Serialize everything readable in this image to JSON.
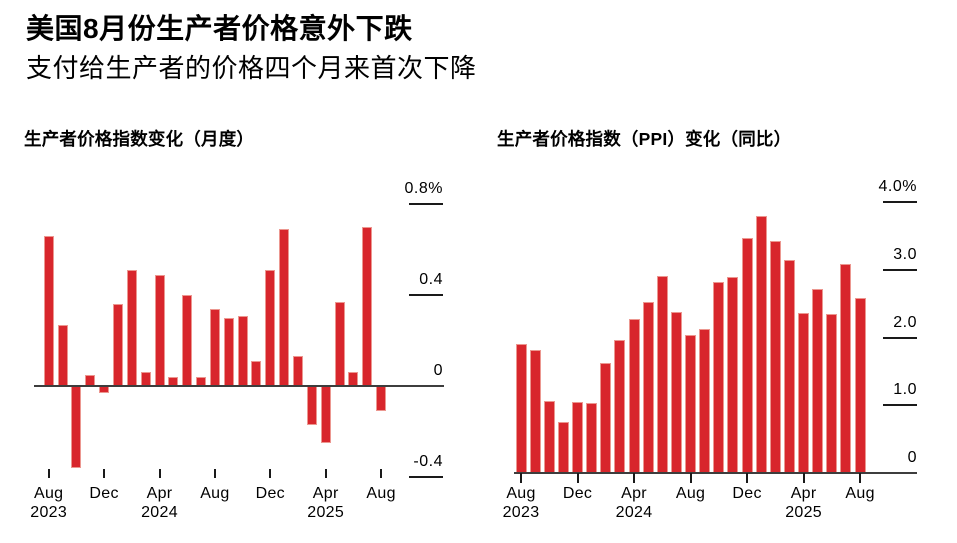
{
  "page": {
    "title": "美国8月份生产者价格意外下跌",
    "subtitle": "支付给生产者的价格四个月来首次下降"
  },
  "colors": {
    "bar": "#d8262c",
    "bar_edge": "#ec9790",
    "axis_line": "#3d3d3d",
    "tick": "#1a1a1a",
    "text": "#000000",
    "background": "#ffffff"
  },
  "chart_data": [
    {
      "type": "bar",
      "title": "生产者价格指数变化（月度）",
      "unit": "percent, month-over-month",
      "x": [
        "2023-08",
        "2023-09",
        "2023-10",
        "2023-11",
        "2023-12",
        "2024-01",
        "2024-02",
        "2024-03",
        "2024-04",
        "2024-05",
        "2024-06",
        "2024-07",
        "2024-08",
        "2024-09",
        "2024-10",
        "2024-11",
        "2024-12",
        "2025-01",
        "2025-02",
        "2025-03",
        "2025-04",
        "2025-05",
        "2025-06",
        "2025-07",
        "2025-08"
      ],
      "values": [
        0.66,
        0.27,
        -0.36,
        0.05,
        -0.03,
        0.36,
        0.51,
        0.06,
        0.49,
        0.04,
        0.4,
        0.04,
        0.34,
        0.3,
        0.31,
        0.11,
        0.51,
        0.69,
        0.13,
        -0.17,
        -0.25,
        0.37,
        0.06,
        0.7,
        -0.11
      ],
      "ylim": [
        -0.4,
        0.8
      ],
      "ytick_labels": [
        "0.8%",
        "0.4",
        "0",
        "-0.4"
      ],
      "ytick_values": [
        0.8,
        0.4,
        0,
        -0.4
      ],
      "xticks": [
        {
          "index": 0,
          "month": "Aug",
          "year": "2023"
        },
        {
          "index": 4,
          "month": "Dec",
          "year": ""
        },
        {
          "index": 8,
          "month": "Apr",
          "year": "2024"
        },
        {
          "index": 12,
          "month": "Aug",
          "year": ""
        },
        {
          "index": 16,
          "month": "Dec",
          "year": ""
        },
        {
          "index": 20,
          "month": "Apr",
          "year": "2025"
        },
        {
          "index": 24,
          "month": "Aug",
          "year": ""
        }
      ],
      "grid": false,
      "legend": "none"
    },
    {
      "type": "bar",
      "title": "生产者价格指数（PPI）变化（同比）",
      "unit": "percent, year-over-year",
      "x": [
        "2023-08",
        "2023-09",
        "2023-10",
        "2023-11",
        "2023-12",
        "2024-01",
        "2024-02",
        "2024-03",
        "2024-04",
        "2024-05",
        "2024-06",
        "2024-07",
        "2024-08",
        "2024-09",
        "2024-10",
        "2024-11",
        "2024-12",
        "2025-01",
        "2025-02",
        "2025-03",
        "2025-04",
        "2025-05",
        "2025-06",
        "2025-07",
        "2025-08"
      ],
      "values": [
        1.9,
        1.81,
        1.07,
        0.76,
        1.05,
        1.03,
        1.63,
        1.97,
        2.28,
        2.53,
        2.91,
        2.38,
        2.04,
        2.13,
        2.82,
        2.89,
        3.47,
        3.79,
        3.42,
        3.14,
        2.37,
        2.72,
        2.35,
        3.09,
        2.59
      ],
      "ylim": [
        0,
        4.0
      ],
      "ytick_labels": [
        "4.0%",
        "3.0",
        "2.0",
        "1.0",
        "0"
      ],
      "ytick_values": [
        4.0,
        3.0,
        2.0,
        1.0,
        0
      ],
      "xticks": [
        {
          "index": 0,
          "month": "Aug",
          "year": "2023"
        },
        {
          "index": 4,
          "month": "Dec",
          "year": ""
        },
        {
          "index": 8,
          "month": "Apr",
          "year": "2024"
        },
        {
          "index": 12,
          "month": "Aug",
          "year": ""
        },
        {
          "index": 16,
          "month": "Dec",
          "year": ""
        },
        {
          "index": 20,
          "month": "Apr",
          "year": "2025"
        },
        {
          "index": 24,
          "month": "Aug",
          "year": ""
        }
      ],
      "grid": false,
      "legend": "none"
    }
  ]
}
